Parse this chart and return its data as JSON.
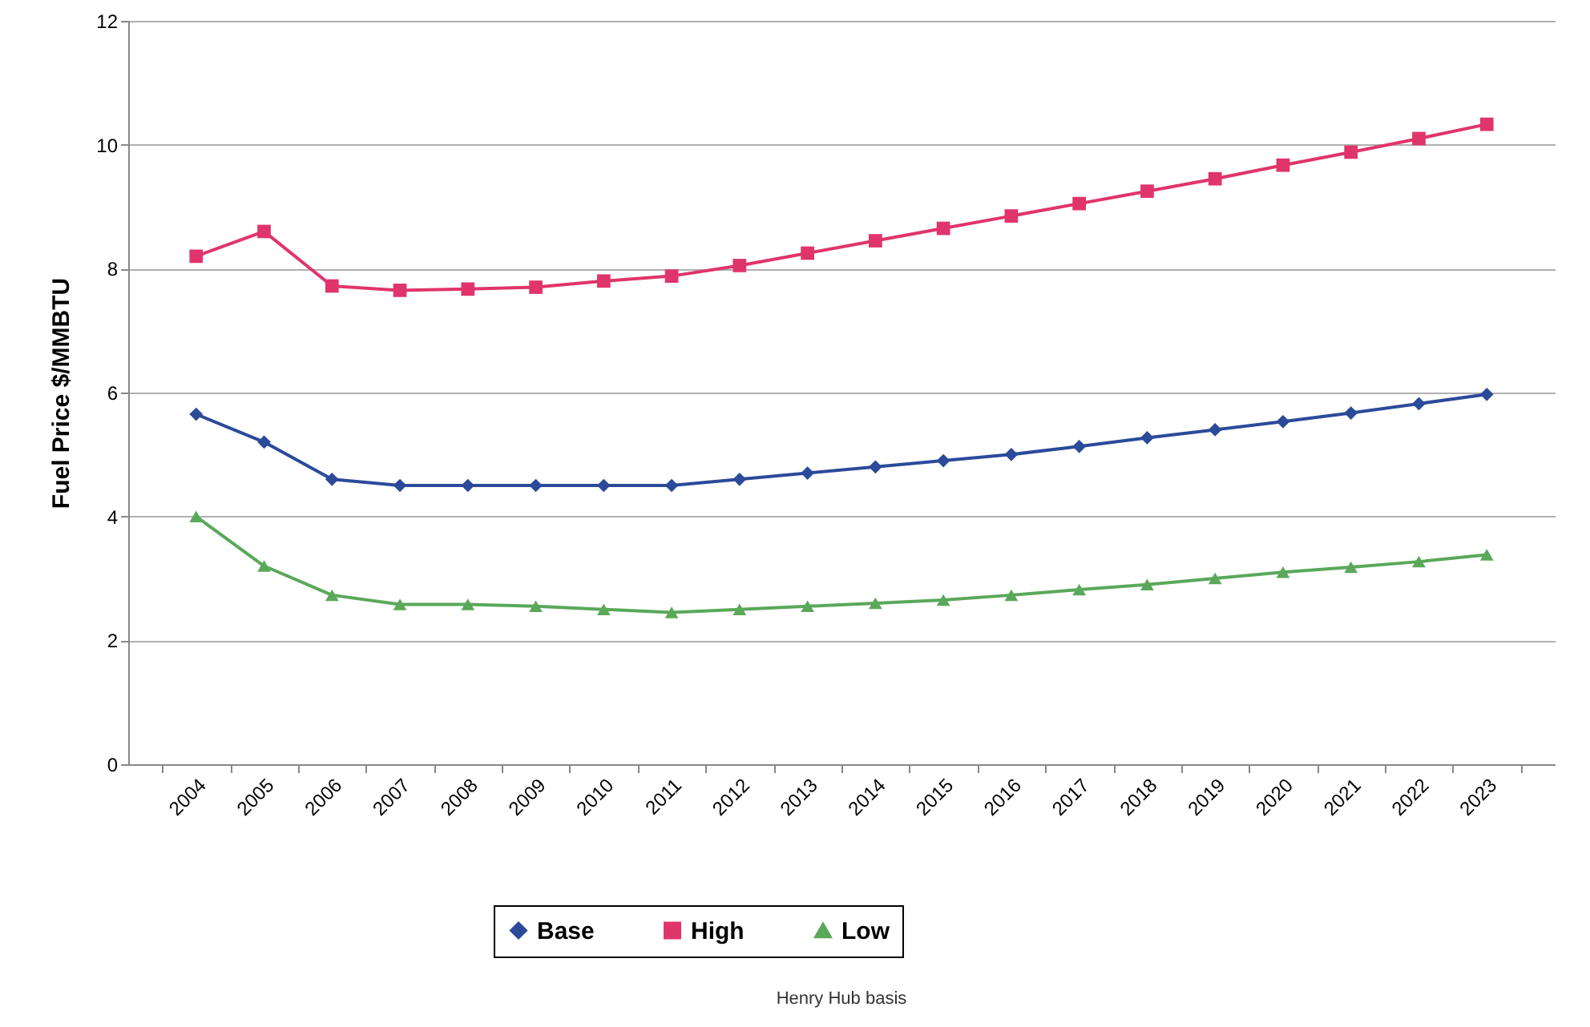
{
  "chart_data": {
    "type": "line",
    "ylabel": "Fuel Price $/MMBTU",
    "annotations": [
      "Henry Hub basis"
    ],
    "categories": [
      "2004",
      "2005",
      "2006",
      "2007",
      "2008",
      "2009",
      "2010",
      "2011",
      "2012",
      "2013",
      "2014",
      "2015",
      "2016",
      "2017",
      "2018",
      "2019",
      "2020",
      "2021",
      "2022",
      "2023"
    ],
    "series": [
      {
        "name": "Base",
        "color": "#2b4a9a",
        "marker": "diamond",
        "values": [
          5.65,
          5.2,
          4.6,
          4.5,
          4.5,
          4.5,
          4.5,
          4.5,
          4.6,
          4.7,
          4.8,
          4.9,
          5.0,
          5.13,
          5.27,
          5.4,
          5.53,
          5.67,
          5.82,
          5.97
        ]
      },
      {
        "name": "High",
        "color": "#e0356a",
        "marker": "square",
        "values": [
          8.2,
          8.6,
          7.72,
          7.65,
          7.67,
          7.7,
          7.8,
          7.88,
          8.05,
          8.25,
          8.45,
          8.65,
          8.85,
          9.05,
          9.25,
          9.45,
          9.67,
          9.88,
          10.1,
          10.33
        ]
      },
      {
        "name": "Low",
        "color": "#5aa85a",
        "marker": "triangle",
        "values": [
          4.0,
          3.2,
          2.73,
          2.58,
          2.58,
          2.55,
          2.5,
          2.45,
          2.5,
          2.55,
          2.6,
          2.65,
          2.73,
          2.82,
          2.9,
          3.0,
          3.1,
          3.18,
          3.27,
          3.38
        ]
      }
    ],
    "ylim": [
      0,
      12
    ],
    "yticks": [
      0,
      2,
      4,
      6,
      8,
      10,
      12
    ],
    "grid": "y",
    "legend": "bottom",
    "line_style": "solid"
  }
}
